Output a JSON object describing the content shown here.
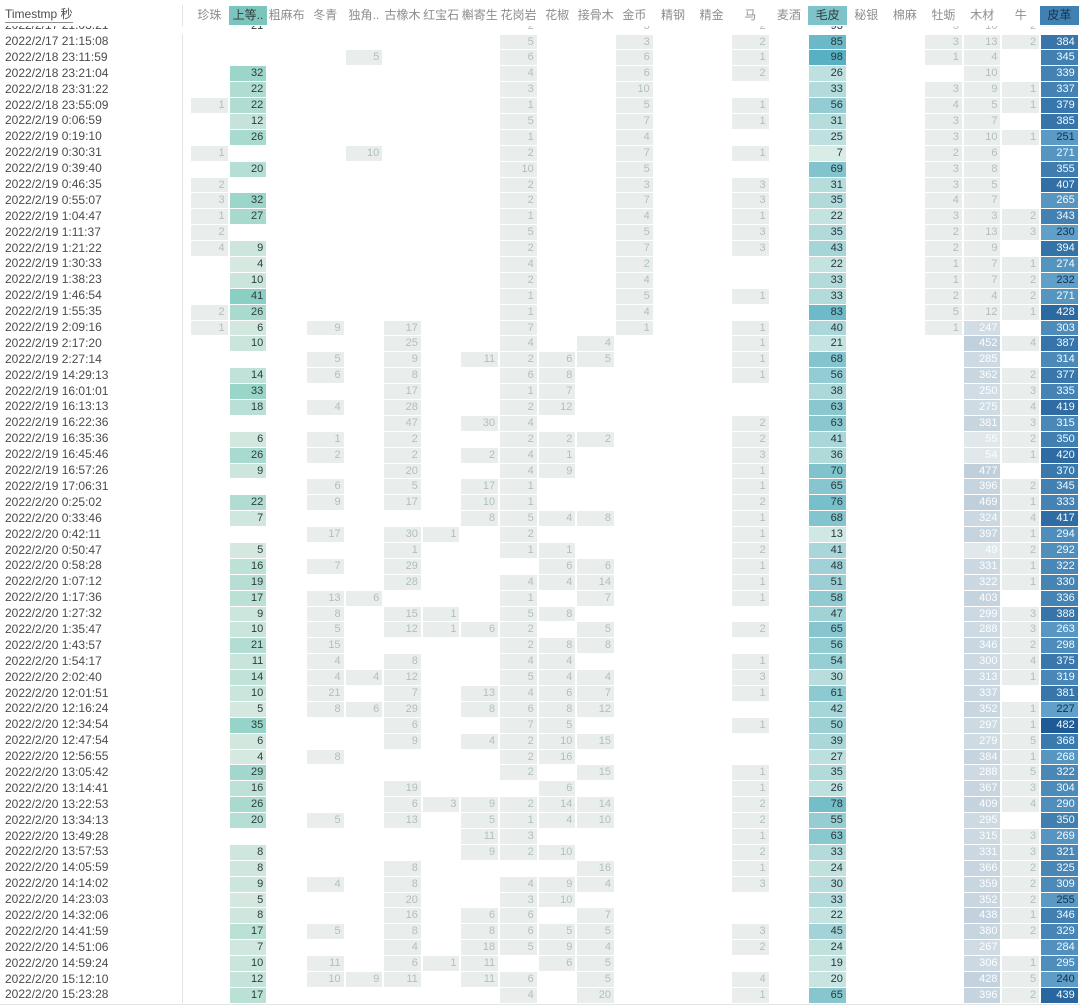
{
  "header": {
    "timestamp_label": "Timestmp 秒",
    "columns": [
      {
        "key": "zhenzhu",
        "label": "珍珠",
        "type": "light",
        "selected": false
      },
      {
        "key": "shangdeng",
        "label": "上等..",
        "type": "shangdeng",
        "selected": true
      },
      {
        "key": "cumabu",
        "label": "粗麻布",
        "type": "light",
        "selected": false
      },
      {
        "key": "dongqing",
        "label": "冬青",
        "type": "light",
        "selected": false
      },
      {
        "key": "dujiao",
        "label": "独角..",
        "type": "light",
        "selected": false
      },
      {
        "key": "guxiangmu",
        "label": "古橡木",
        "type": "light",
        "selected": false
      },
      {
        "key": "hongbaoshi",
        "label": "红宝石",
        "type": "light",
        "selected": false
      },
      {
        "key": "hujisheng",
        "label": "槲寄生",
        "type": "light",
        "selected": false
      },
      {
        "key": "huagangyan",
        "label": "花岗岩",
        "type": "light",
        "selected": false
      },
      {
        "key": "huajiao",
        "label": "花椒",
        "type": "light",
        "selected": false
      },
      {
        "key": "jiegumu",
        "label": "接骨木",
        "type": "light",
        "selected": false
      },
      {
        "key": "jinbi",
        "label": "金币",
        "type": "light",
        "selected": false
      },
      {
        "key": "jinggang",
        "label": "精钢",
        "type": "light",
        "selected": false
      },
      {
        "key": "jingjin",
        "label": "精金",
        "type": "light",
        "selected": false
      },
      {
        "key": "ma",
        "label": "马",
        "type": "light",
        "selected": false
      },
      {
        "key": "maijiu",
        "label": "麦酒",
        "type": "light",
        "selected": false
      },
      {
        "key": "maopi",
        "label": "毛皮",
        "type": "maopi",
        "selected": true
      },
      {
        "key": "miyin",
        "label": "秘银",
        "type": "light",
        "selected": false
      },
      {
        "key": "mianma",
        "label": "棉麻",
        "type": "light",
        "selected": false
      },
      {
        "key": "muli",
        "label": "牡蛎",
        "type": "light",
        "selected": false
      },
      {
        "key": "mucai",
        "label": "木材",
        "type": "mucai",
        "selected": false
      },
      {
        "key": "niu",
        "label": "牛",
        "type": "light",
        "selected": false
      },
      {
        "key": "pige",
        "label": "皮革",
        "type": "pige",
        "selected": true
      }
    ]
  },
  "colors": {
    "light_bg": "#e9eeec",
    "light_fg": "#b2bfbc",
    "shangdeng_min": "#d6e9e1",
    "shangdeng_max": "#8acfc3",
    "shangdeng_fg": "#2f3e3b",
    "maopi_min": "#d9ece5",
    "maopi_max": "#58b1c3",
    "maopi_fg": "#26363a",
    "mucai_min": "#e1e8eb",
    "mucai_max": "#bfcfdc",
    "mucai_fg": "#fdfefe",
    "pige_min": "#61a1c9",
    "pige_max": "#1d5a96",
    "pige_fg_light": "#f4f8fb",
    "pige_fg_dark": "#12304f",
    "header_shangdeng": "#7cc5bc",
    "header_maopi": "#7fc2ca",
    "header_pige": "#4181b1",
    "header_pige_fg": "#16324f"
  },
  "rows": [
    {
      "t": "2022/2/17 21:03:21",
      "cut": true,
      "v": {
        "1": "21",
        "8": "2",
        "11": "3",
        "14": "2",
        "16": "93",
        "19": "3",
        "20": "16",
        "21": "2",
        "22": "282"
      }
    },
    {
      "t": "2022/2/17 21:15:08",
      "v": {
        "8": "5",
        "11": "3",
        "14": "2",
        "16": "85",
        "19": "3",
        "20": "13",
        "21": "2",
        "22": "384"
      }
    },
    {
      "t": "2022/2/18 23:11:59",
      "v": {
        "4": "5",
        "8": "6",
        "11": "6",
        "14": "1",
        "16": "98",
        "19": "1",
        "20": "4",
        "22": "345"
      }
    },
    {
      "t": "2022/2/18 23:21:04",
      "v": {
        "1": "32",
        "8": "4",
        "11": "6",
        "14": "2",
        "16": "26",
        "20": "10",
        "22": "339"
      }
    },
    {
      "t": "2022/2/18 23:31:22",
      "v": {
        "1": "22",
        "8": "3",
        "11": "10",
        "16": "33",
        "19": "3",
        "20": "9",
        "21": "1",
        "22": "337"
      }
    },
    {
      "t": "2022/2/18 23:55:09",
      "v": {
        "0": "1",
        "1": "22",
        "8": "1",
        "11": "5",
        "14": "1",
        "16": "56",
        "19": "4",
        "20": "5",
        "21": "1",
        "22": "379"
      }
    },
    {
      "t": "2022/2/19 0:06:59",
      "v": {
        "1": "12",
        "8": "5",
        "11": "7",
        "14": "1",
        "16": "31",
        "19": "3",
        "20": "7",
        "22": "385"
      }
    },
    {
      "t": "2022/2/19 0:19:10",
      "v": {
        "1": "26",
        "8": "1",
        "11": "4",
        "16": "25",
        "19": "3",
        "20": "10",
        "21": "1",
        "22": "251"
      }
    },
    {
      "t": "2022/2/19 0:30:31",
      "v": {
        "0": "1",
        "4": "10",
        "8": "2",
        "11": "7",
        "14": "1",
        "16": "7",
        "19": "2",
        "20": "6",
        "22": "271"
      }
    },
    {
      "t": "2022/2/19 0:39:40",
      "v": {
        "1": "20",
        "8": "10",
        "11": "5",
        "16": "69",
        "19": "3",
        "20": "8",
        "22": "355"
      }
    },
    {
      "t": "2022/2/19 0:46:35",
      "v": {
        "0": "2",
        "8": "2",
        "11": "3",
        "14": "3",
        "16": "31",
        "19": "3",
        "20": "5",
        "22": "407"
      }
    },
    {
      "t": "2022/2/19 0:55:07",
      "v": {
        "0": "3",
        "1": "32",
        "8": "2",
        "11": "7",
        "14": "3",
        "16": "35",
        "19": "4",
        "20": "7",
        "22": "265"
      }
    },
    {
      "t": "2022/2/19 1:04:47",
      "v": {
        "0": "1",
        "1": "27",
        "8": "1",
        "11": "4",
        "14": "1",
        "16": "22",
        "19": "3",
        "20": "3",
        "21": "2",
        "22": "343"
      }
    },
    {
      "t": "2022/2/19 1:11:37",
      "v": {
        "0": "2",
        "8": "5",
        "11": "5",
        "14": "3",
        "16": "35",
        "19": "2",
        "20": "13",
        "21": "3",
        "22": "230"
      }
    },
    {
      "t": "2022/2/19 1:21:22",
      "v": {
        "0": "4",
        "1": "9",
        "8": "2",
        "11": "7",
        "14": "3",
        "16": "43",
        "19": "2",
        "20": "9",
        "22": "394"
      }
    },
    {
      "t": "2022/2/19 1:30:33",
      "v": {
        "1": "4",
        "8": "4",
        "11": "2",
        "16": "22",
        "19": "1",
        "20": "7",
        "21": "1",
        "22": "274"
      }
    },
    {
      "t": "2022/2/19 1:38:23",
      "v": {
        "1": "10",
        "8": "2",
        "11": "4",
        "16": "33",
        "19": "1",
        "20": "7",
        "21": "2",
        "22": "232"
      }
    },
    {
      "t": "2022/2/19 1:46:54",
      "v": {
        "1": "41",
        "8": "1",
        "11": "5",
        "14": "1",
        "16": "33",
        "19": "2",
        "20": "4",
        "21": "2",
        "22": "271"
      }
    },
    {
      "t": "2022/2/19 1:55:35",
      "v": {
        "0": "2",
        "1": "26",
        "8": "1",
        "11": "4",
        "16": "83",
        "19": "5",
        "20": "12",
        "21": "1",
        "22": "428"
      }
    },
    {
      "t": "2022/2/19 2:09:16",
      "v": {
        "0": "1",
        "1": "6",
        "3": "9",
        "5": "17",
        "8": "7",
        "11": "1",
        "14": "1",
        "16": "40",
        "19": "1",
        "20": "247",
        "22": "303"
      }
    },
    {
      "t": "2022/2/19 2:17:20",
      "v": {
        "1": "10",
        "5": "25",
        "8": "4",
        "10": "4",
        "14": "1",
        "16": "21",
        "20": "452",
        "21": "4",
        "22": "387"
      }
    },
    {
      "t": "2022/2/19 2:27:14",
      "v": {
        "3": "5",
        "5": "9",
        "7": "11",
        "8": "2",
        "9": "6",
        "10": "5",
        "14": "1",
        "16": "68",
        "20": "285",
        "22": "314"
      }
    },
    {
      "t": "2022/2/19 14:29:13",
      "v": {
        "1": "14",
        "3": "6",
        "5": "8",
        "8": "6",
        "9": "8",
        "14": "1",
        "16": "56",
        "20": "362",
        "21": "2",
        "22": "377"
      }
    },
    {
      "t": "2022/2/19 16:01:01",
      "v": {
        "1": "33",
        "5": "17",
        "8": "1",
        "9": "7",
        "16": "38",
        "20": "250",
        "21": "3",
        "22": "335"
      }
    },
    {
      "t": "2022/2/19 16:13:13",
      "v": {
        "1": "18",
        "3": "4",
        "5": "28",
        "8": "2",
        "9": "12",
        "16": "63",
        "20": "275",
        "21": "4",
        "22": "419"
      }
    },
    {
      "t": "2022/2/19 16:22:36",
      "v": {
        "5": "47",
        "7": "30",
        "8": "4",
        "14": "2",
        "16": "63",
        "20": "381",
        "21": "3",
        "22": "315"
      }
    },
    {
      "t": "2022/2/19 16:35:36",
      "v": {
        "1": "6",
        "3": "1",
        "5": "2",
        "8": "2",
        "9": "2",
        "10": "2",
        "14": "2",
        "16": "41",
        "20": "55",
        "21": "2",
        "22": "350"
      }
    },
    {
      "t": "2022/2/19 16:45:46",
      "v": {
        "1": "26",
        "3": "2",
        "5": "2",
        "7": "2",
        "8": "4",
        "9": "1",
        "14": "3",
        "16": "36",
        "20": "54",
        "21": "1",
        "22": "420"
      }
    },
    {
      "t": "2022/2/19 16:57:26",
      "v": {
        "1": "9",
        "5": "20",
        "8": "4",
        "9": "9",
        "14": "1",
        "16": "70",
        "20": "477",
        "22": "370"
      }
    },
    {
      "t": "2022/2/19 17:06:31",
      "v": {
        "3": "6",
        "5": "5",
        "7": "17",
        "8": "1",
        "14": "1",
        "16": "65",
        "20": "396",
        "21": "2",
        "22": "345"
      }
    },
    {
      "t": "2022/2/20 0:25:02",
      "v": {
        "1": "22",
        "3": "9",
        "5": "17",
        "7": "10",
        "8": "1",
        "14": "2",
        "16": "76",
        "20": "469",
        "21": "1",
        "22": "333"
      }
    },
    {
      "t": "2022/2/20 0:33:46",
      "v": {
        "1": "7",
        "7": "8",
        "8": "5",
        "9": "4",
        "10": "8",
        "14": "1",
        "16": "68",
        "20": "324",
        "21": "4",
        "22": "417"
      }
    },
    {
      "t": "2022/2/20 0:42:11",
      "v": {
        "3": "17",
        "5": "30",
        "6": "1",
        "8": "2",
        "14": "1",
        "16": "13",
        "20": "397",
        "21": "1",
        "22": "294"
      }
    },
    {
      "t": "2022/2/20 0:50:47",
      "v": {
        "1": "5",
        "5": "1",
        "8": "1",
        "9": "1",
        "14": "2",
        "16": "41",
        "20": "49",
        "21": "2",
        "22": "292"
      }
    },
    {
      "t": "2022/2/20 0:58:28",
      "v": {
        "1": "16",
        "3": "7",
        "5": "29",
        "9": "6",
        "10": "6",
        "14": "1",
        "16": "48",
        "20": "331",
        "21": "1",
        "22": "322"
      }
    },
    {
      "t": "2022/2/20 1:07:12",
      "v": {
        "1": "19",
        "5": "28",
        "8": "4",
        "9": "4",
        "10": "14",
        "14": "1",
        "16": "51",
        "20": "322",
        "21": "1",
        "22": "330"
      }
    },
    {
      "t": "2022/2/20 1:17:36",
      "v": {
        "1": "17",
        "3": "13",
        "4": "6",
        "8": "1",
        "10": "7",
        "14": "1",
        "16": "58",
        "20": "403",
        "22": "336"
      }
    },
    {
      "t": "2022/2/20 1:27:32",
      "v": {
        "1": "9",
        "3": "8",
        "5": "15",
        "6": "1",
        "8": "5",
        "9": "8",
        "16": "47",
        "20": "299",
        "21": "3",
        "22": "388"
      }
    },
    {
      "t": "2022/2/20 1:35:47",
      "v": {
        "1": "10",
        "3": "5",
        "5": "12",
        "6": "1",
        "7": "6",
        "8": "2",
        "10": "5",
        "14": "2",
        "16": "65",
        "20": "288",
        "21": "3",
        "22": "263"
      }
    },
    {
      "t": "2022/2/20 1:43:57",
      "v": {
        "1": "21",
        "3": "15",
        "8": "2",
        "9": "8",
        "10": "8",
        "16": "56",
        "20": "346",
        "21": "2",
        "22": "298"
      }
    },
    {
      "t": "2022/2/20 1:54:17",
      "v": {
        "1": "11",
        "3": "4",
        "5": "8",
        "8": "4",
        "9": "4",
        "14": "1",
        "16": "54",
        "20": "300",
        "21": "4",
        "22": "375"
      }
    },
    {
      "t": "2022/2/20 2:02:40",
      "v": {
        "1": "14",
        "3": "4",
        "4": "4",
        "5": "12",
        "8": "5",
        "9": "4",
        "10": "4",
        "14": "3",
        "16": "30",
        "20": "313",
        "21": "1",
        "22": "319"
      }
    },
    {
      "t": "2022/2/20 12:01:51",
      "v": {
        "1": "10",
        "3": "21",
        "5": "7",
        "7": "13",
        "8": "4",
        "9": "6",
        "10": "7",
        "14": "1",
        "16": "61",
        "20": "337",
        "22": "381"
      }
    },
    {
      "t": "2022/2/20 12:16:24",
      "v": {
        "1": "5",
        "3": "8",
        "4": "6",
        "5": "29",
        "7": "8",
        "8": "6",
        "9": "8",
        "10": "12",
        "16": "42",
        "20": "352",
        "21": "1",
        "22": "227"
      }
    },
    {
      "t": "2022/2/20 12:34:54",
      "v": {
        "1": "35",
        "5": "6",
        "8": "7",
        "9": "5",
        "14": "1",
        "16": "50",
        "20": "297",
        "21": "1",
        "22": "482"
      }
    },
    {
      "t": "2022/2/20 12:47:54",
      "v": {
        "1": "6",
        "5": "9",
        "7": "4",
        "8": "2",
        "9": "10",
        "10": "15",
        "16": "39",
        "20": "279",
        "21": "5",
        "22": "368"
      }
    },
    {
      "t": "2022/2/20 12:56:55",
      "v": {
        "1": "4",
        "3": "8",
        "8": "2",
        "9": "16",
        "16": "27",
        "20": "384",
        "21": "1",
        "22": "268"
      }
    },
    {
      "t": "2022/2/20 13:05:42",
      "v": {
        "1": "29",
        "8": "2",
        "10": "15",
        "14": "1",
        "16": "35",
        "20": "288",
        "21": "5",
        "22": "322"
      }
    },
    {
      "t": "2022/2/20 13:14:41",
      "v": {
        "1": "16",
        "5": "19",
        "9": "6",
        "14": "1",
        "16": "26",
        "20": "367",
        "21": "3",
        "22": "304"
      }
    },
    {
      "t": "2022/2/20 13:22:53",
      "v": {
        "1": "26",
        "5": "6",
        "6": "3",
        "7": "9",
        "8": "2",
        "9": "14",
        "10": "14",
        "14": "2",
        "16": "78",
        "20": "409",
        "21": "4",
        "22": "290"
      }
    },
    {
      "t": "2022/2/20 13:34:13",
      "v": {
        "1": "20",
        "3": "5",
        "5": "13",
        "7": "5",
        "8": "1",
        "9": "4",
        "10": "10",
        "14": "2",
        "16": "55",
        "20": "295",
        "22": "350"
      }
    },
    {
      "t": "2022/2/20 13:49:28",
      "v": {
        "7": "11",
        "8": "3",
        "14": "1",
        "16": "63",
        "20": "315",
        "21": "3",
        "22": "269"
      }
    },
    {
      "t": "2022/2/20 13:57:53",
      "v": {
        "1": "8",
        "7": "9",
        "8": "2",
        "9": "10",
        "14": "2",
        "16": "33",
        "20": "331",
        "21": "3",
        "22": "321"
      }
    },
    {
      "t": "2022/2/20 14:05:59",
      "v": {
        "1": "8",
        "5": "8",
        "10": "16",
        "14": "1",
        "16": "24",
        "20": "366",
        "21": "2",
        "22": "325"
      }
    },
    {
      "t": "2022/2/20 14:14:02",
      "v": {
        "1": "9",
        "3": "4",
        "5": "8",
        "8": "4",
        "9": "9",
        "10": "4",
        "14": "3",
        "16": "30",
        "20": "359",
        "21": "2",
        "22": "309"
      }
    },
    {
      "t": "2022/2/20 14:23:03",
      "v": {
        "1": "5",
        "5": "20",
        "8": "3",
        "9": "10",
        "16": "33",
        "20": "352",
        "21": "2",
        "22": "255"
      }
    },
    {
      "t": "2022/2/20 14:32:06",
      "v": {
        "1": "8",
        "5": "16",
        "7": "6",
        "8": "6",
        "10": "7",
        "16": "22",
        "20": "438",
        "21": "1",
        "22": "346"
      }
    },
    {
      "t": "2022/2/20 14:41:59",
      "v": {
        "1": "17",
        "3": "5",
        "5": "8",
        "7": "8",
        "8": "6",
        "9": "5",
        "10": "5",
        "14": "3",
        "16": "45",
        "20": "380",
        "21": "2",
        "22": "329"
      }
    },
    {
      "t": "2022/2/20 14:51:06",
      "v": {
        "1": "7",
        "5": "4",
        "7": "18",
        "8": "5",
        "9": "9",
        "10": "4",
        "14": "2",
        "16": "24",
        "20": "267",
        "22": "284"
      }
    },
    {
      "t": "2022/2/20 14:59:24",
      "v": {
        "1": "10",
        "3": "11",
        "5": "6",
        "6": "1",
        "7": "11",
        "9": "6",
        "10": "5",
        "16": "19",
        "20": "306",
        "21": "1",
        "22": "295"
      }
    },
    {
      "t": "2022/2/20 15:12:10",
      "v": {
        "1": "12",
        "3": "10",
        "4": "9",
        "5": "11",
        "7": "11",
        "8": "6",
        "10": "5",
        "14": "4",
        "16": "20",
        "20": "428",
        "21": "5",
        "22": "240"
      }
    },
    {
      "t": "2022/2/20 15:23:28",
      "v": {
        "1": "17",
        "8": "4",
        "10": "20",
        "14": "1",
        "16": "65",
        "20": "396",
        "21": "2",
        "22": "439"
      }
    }
  ]
}
